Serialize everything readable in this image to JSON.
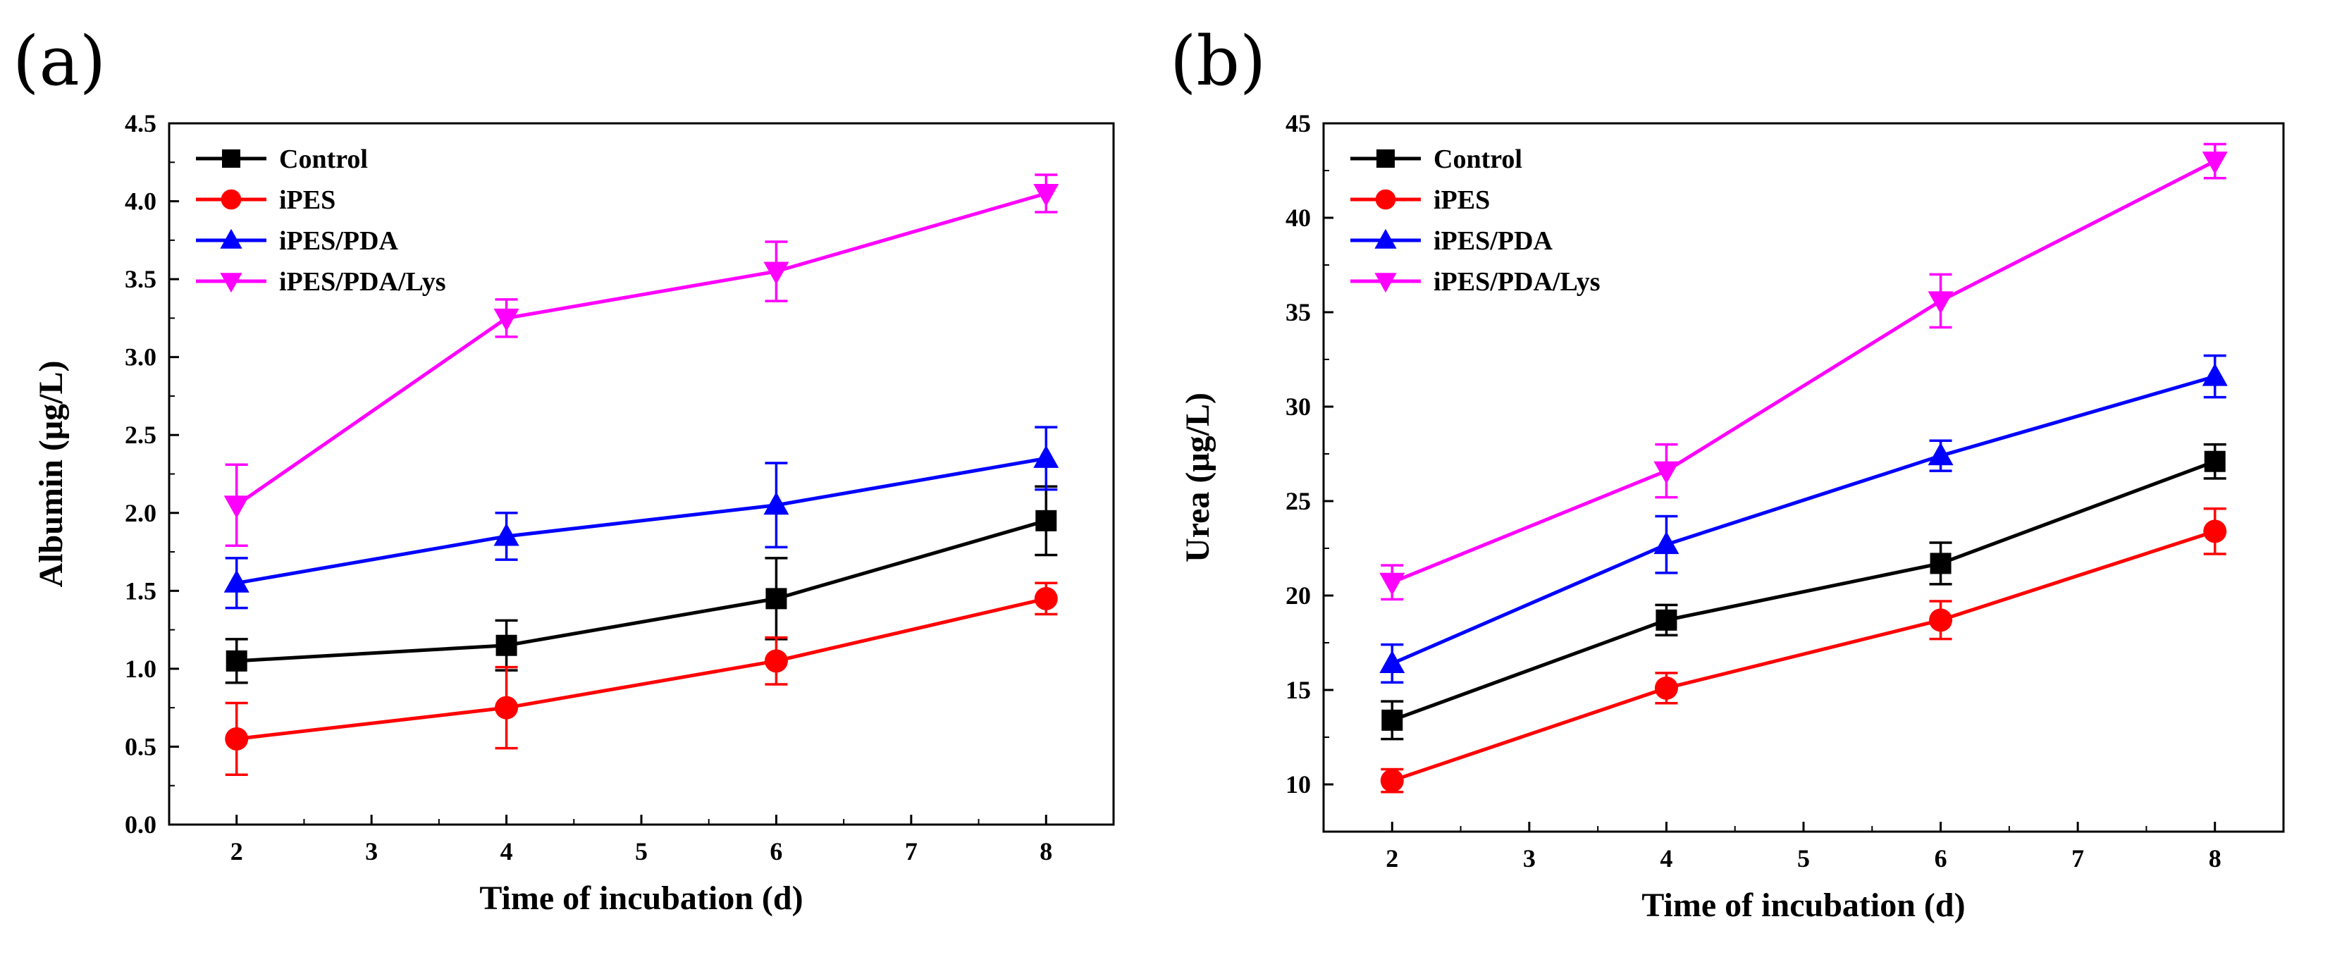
{
  "chart_data": [
    {
      "panel_label": "(a)",
      "type": "line",
      "title": "",
      "xlabel": "Time of incubation (d)",
      "ylabel": "Albumin (μg/L)",
      "xlim": [
        1.5,
        8.5
      ],
      "ylim": [
        0.0,
        4.5
      ],
      "x_ticks": [
        2,
        3,
        4,
        5,
        6,
        7,
        8
      ],
      "x_tick_labels": [
        "2",
        "3",
        "4",
        "5",
        "6",
        "7",
        "8"
      ],
      "y_ticks": [
        0.0,
        0.5,
        1.0,
        1.5,
        2.0,
        2.5,
        3.0,
        3.5,
        4.0,
        4.5
      ],
      "y_tick_labels": [
        "0.0",
        "0.5",
        "1.0",
        "1.5",
        "2.0",
        "2.5",
        "3.0",
        "3.5",
        "4.0",
        "4.5"
      ],
      "legend_position": "top-left",
      "x": [
        2,
        4,
        6,
        8
      ],
      "series": [
        {
          "name": "Control",
          "color": "#000000",
          "marker": "square",
          "values": [
            1.05,
            1.15,
            1.45,
            1.95
          ],
          "errors": [
            0.14,
            0.16,
            0.26,
            0.22
          ]
        },
        {
          "name": "iPES",
          "color": "#ff0000",
          "marker": "circle",
          "values": [
            0.55,
            0.75,
            1.05,
            1.45
          ],
          "errors": [
            0.23,
            0.26,
            0.15,
            0.1
          ]
        },
        {
          "name": "iPES/PDA",
          "color": "#0000ff",
          "marker": "triangle-up",
          "values": [
            1.55,
            1.85,
            2.05,
            2.35
          ],
          "errors": [
            0.16,
            0.15,
            0.27,
            0.2
          ]
        },
        {
          "name": "iPES/PDA/Lys",
          "color": "#ff00ff",
          "marker": "triangle-down",
          "values": [
            2.05,
            3.25,
            3.55,
            4.05
          ],
          "errors": [
            0.26,
            0.12,
            0.19,
            0.12
          ]
        }
      ]
    },
    {
      "panel_label": "(b)",
      "type": "line",
      "title": "",
      "xlabel": "Time of incubation (d)",
      "ylabel": "Urea (μg/L)",
      "xlim": [
        1.5,
        8.5
      ],
      "ylim": [
        7.5,
        45
      ],
      "x_ticks": [
        2,
        3,
        4,
        5,
        6,
        7,
        8
      ],
      "x_tick_labels": [
        "2",
        "3",
        "4",
        "5",
        "6",
        "7",
        "8"
      ],
      "y_ticks": [
        10,
        15,
        20,
        25,
        30,
        35,
        40,
        45
      ],
      "y_tick_labels": [
        "10",
        "15",
        "20",
        "25",
        "30",
        "35",
        "40",
        "45"
      ],
      "legend_position": "top-left",
      "x": [
        2,
        4,
        6,
        8
      ],
      "series": [
        {
          "name": "Control",
          "color": "#000000",
          "marker": "square",
          "values": [
            13.4,
            18.7,
            21.7,
            27.1
          ],
          "errors": [
            1.0,
            0.8,
            1.1,
            0.9
          ]
        },
        {
          "name": "iPES",
          "color": "#ff0000",
          "marker": "circle",
          "values": [
            10.2,
            15.1,
            18.7,
            23.4
          ],
          "errors": [
            0.6,
            0.8,
            1.0,
            1.2
          ]
        },
        {
          "name": "iPES/PDA",
          "color": "#0000ff",
          "marker": "triangle-up",
          "values": [
            16.4,
            22.7,
            27.4,
            31.6
          ],
          "errors": [
            1.0,
            1.5,
            0.8,
            1.1
          ]
        },
        {
          "name": "iPES/PDA/Lys",
          "color": "#ff00ff",
          "marker": "triangle-down",
          "values": [
            20.7,
            26.6,
            35.6,
            43.0
          ],
          "errors": [
            0.9,
            1.4,
            1.4,
            0.9
          ]
        }
      ]
    }
  ]
}
